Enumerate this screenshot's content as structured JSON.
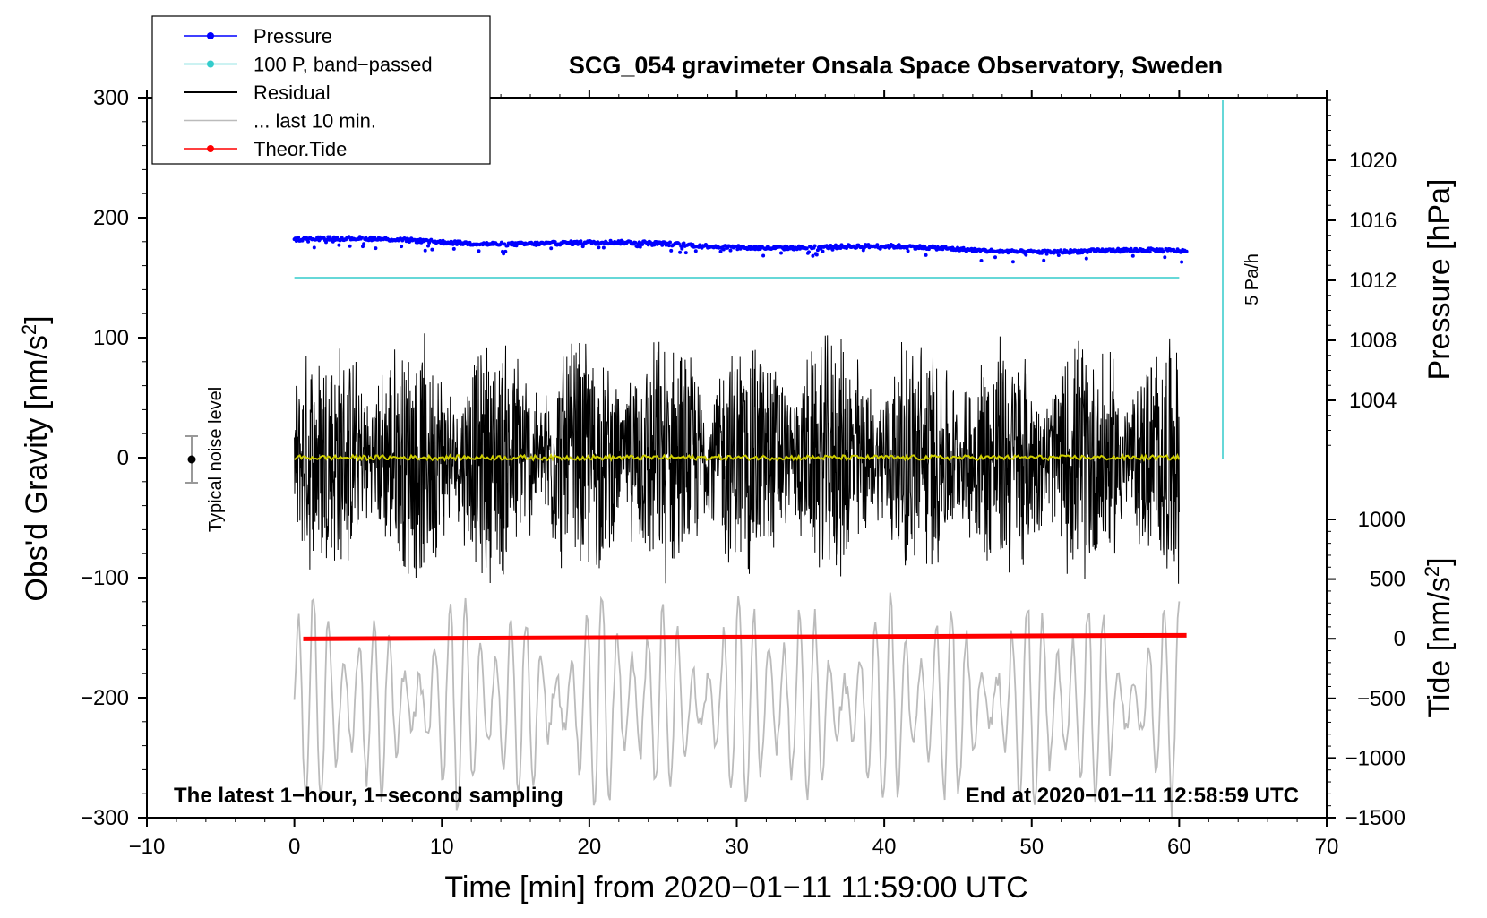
{
  "chart_data": {
    "type": "line",
    "title": "SCG_054 gravimeter Onsala Space Observatory, Sweden",
    "xlabel": "Time [min] from 2020−01−11 11:59:00 UTC",
    "xlim": [
      -10,
      70
    ],
    "xticks": [
      "−10",
      "0",
      "10",
      "20",
      "30",
      "40",
      "50",
      "60",
      "70"
    ],
    "left_axis": {
      "label": "Obs'd Gravity [nm/s",
      "label_sup": "2",
      "label_end": "]",
      "ylim": [
        -300,
        300
      ],
      "ticks": [
        "300",
        "200",
        "100",
        "0",
        "−100",
        "−200",
        "−300"
      ]
    },
    "right_axis_pressure": {
      "label": "Pressure [hPa]",
      "ticks": [
        "1020",
        "1016",
        "1012",
        "1008",
        "1004"
      ]
    },
    "right_axis_tide": {
      "label": "Tide [nm/s",
      "label_sup": "2",
      "label_end": "]",
      "ticks": [
        "1000",
        "500",
        "0",
        "−500",
        "−1000",
        "−1500"
      ]
    },
    "legend": [
      {
        "label": "Pressure",
        "color": "#0000ff",
        "marker": true
      },
      {
        "label": "100 P, band−passed",
        "color": "#33cccc",
        "marker": true
      },
      {
        "label": "Residual",
        "color": "#000000",
        "marker": false
      },
      {
        "label": "... last 10 min.",
        "color": "#bbbbbb",
        "marker": false
      },
      {
        "label": "Theor.Tide",
        "color": "#ff0000",
        "marker": true
      }
    ],
    "series": [
      {
        "name": "Pressure",
        "x_range": [
          0,
          60.5
        ],
        "plotted_start": 182,
        "plotted_end": 171,
        "unit_axis": "left"
      },
      {
        "name": "100 P, band−passed",
        "x_range": [
          0,
          60
        ],
        "plotted_level": 150
      },
      {
        "name": "Residual",
        "x_range": [
          0,
          60
        ],
        "amplitude_range": [
          -115,
          125
        ]
      },
      {
        "name": "Smoothed residual",
        "color": "#cccc00",
        "level": 0
      },
      {
        "name": "... last 10 min.",
        "x_range": [
          0,
          60
        ],
        "center": -205,
        "amplitude": 90
      },
      {
        "name": "Theor.Tide",
        "x_range": [
          0.6,
          60.5
        ],
        "plotted_start": -151,
        "plotted_end": -148
      }
    ],
    "noise_marker": {
      "label": "Typical noise level",
      "x": -7,
      "y": 0,
      "err": 20
    },
    "rate_marker": {
      "label": "5 Pa/h",
      "x": 63
    },
    "colors": {
      "pressure": "#0000ff",
      "bandpassed": "#33cccc",
      "residual": "#000000",
      "smooth": "#cccc00",
      "last10": "#bbbbbb",
      "tide": "#ff0000"
    },
    "notes": {
      "left": "The latest 1−hour, 1−second sampling",
      "right": "End at 2020−01−11 12:58:59 UTC"
    }
  }
}
